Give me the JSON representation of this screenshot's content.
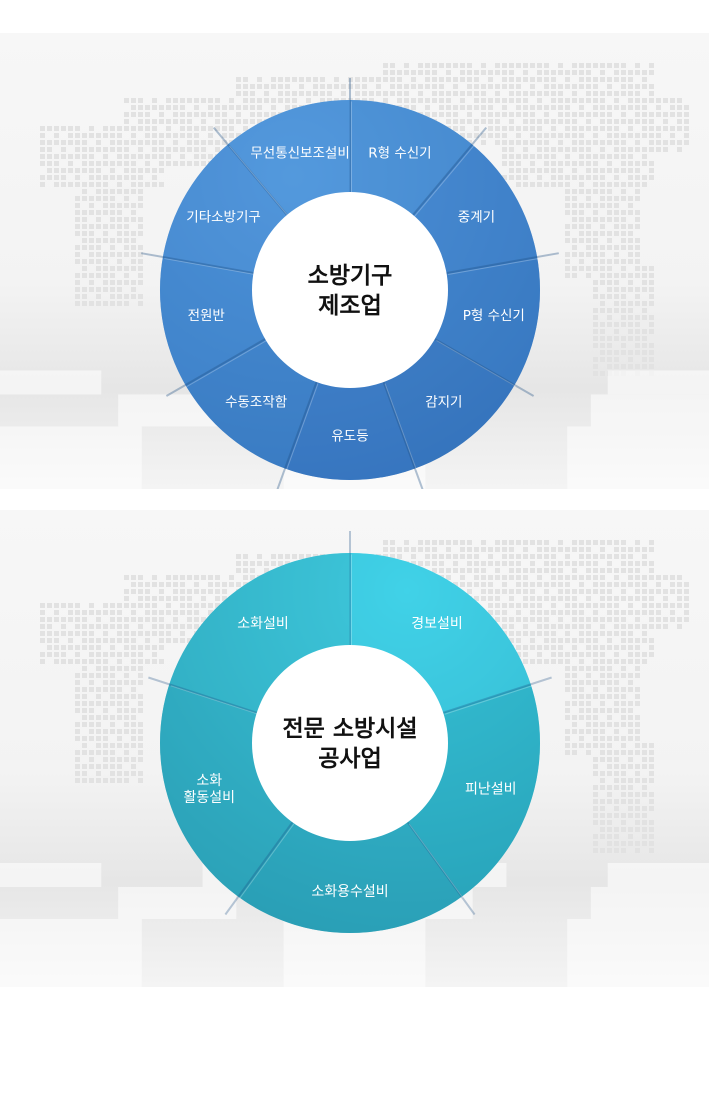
{
  "diagrams": [
    {
      "center_lines": [
        "소방기구",
        "제조업"
      ],
      "segments": [
        {
          "label": "R형 수신기"
        },
        {
          "label": "중계기"
        },
        {
          "label": "P형 수신기"
        },
        {
          "label": "감지기"
        },
        {
          "label": "유도등"
        },
        {
          "label": "수동조작함"
        },
        {
          "label": "전원반"
        },
        {
          "label": "기타소방기구"
        },
        {
          "label": "무선통신보조설비"
        }
      ],
      "colors": {
        "ring_light": "#4f93d8",
        "ring_dark": "#2f6db3"
      }
    },
    {
      "center_lines": [
        "전문 소방시설",
        "공사업"
      ],
      "segments": [
        {
          "label": "경보설비"
        },
        {
          "label": "피난설비"
        },
        {
          "label": "소화용수설비"
        },
        {
          "label": "소화 활동설비",
          "lines": [
            "소화",
            "활동설비"
          ]
        },
        {
          "label": "소화설비"
        }
      ],
      "colors": {
        "ring_light": "#44d6ec",
        "ring_dark": "#2394aa"
      }
    }
  ]
}
